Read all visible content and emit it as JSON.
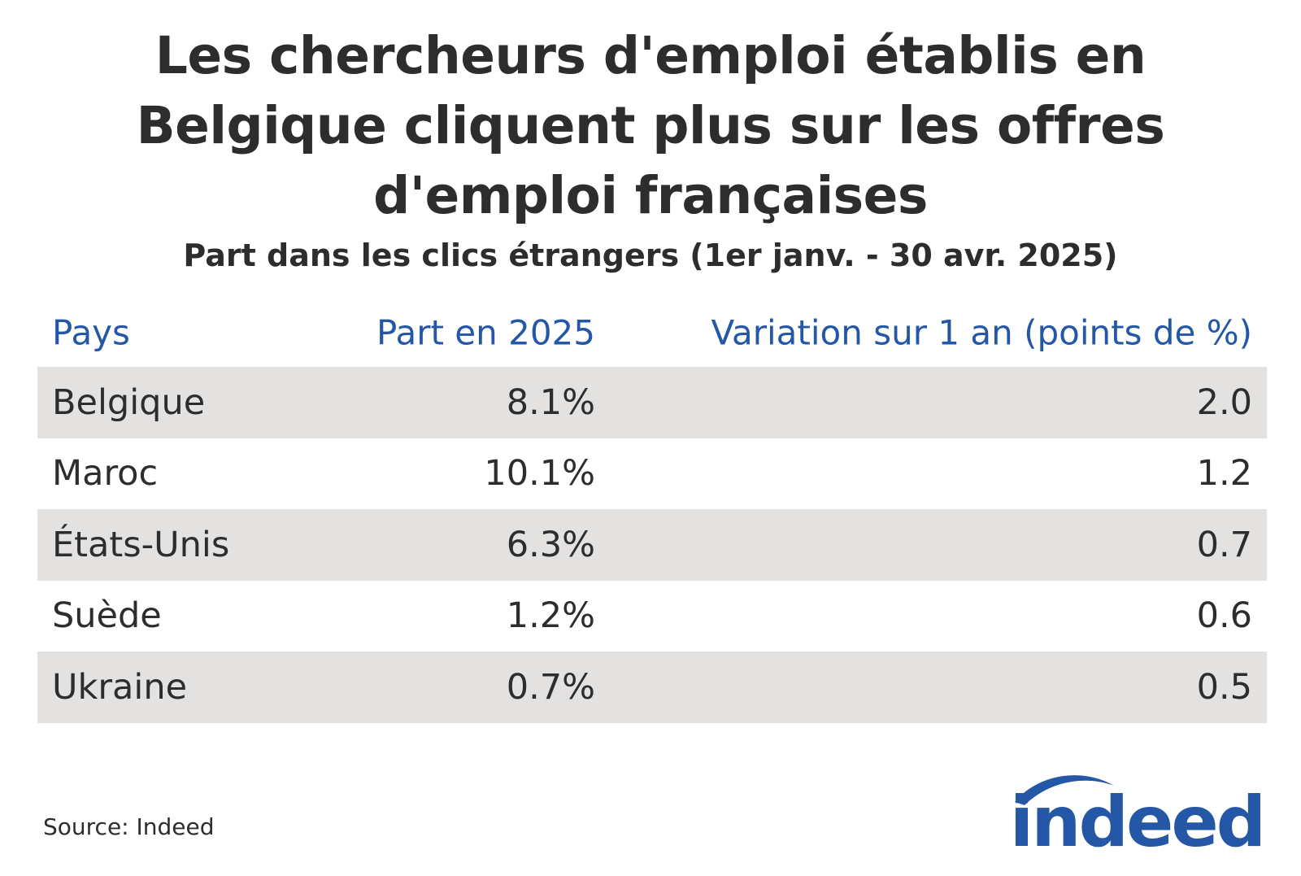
{
  "chart_data": {
    "type": "table",
    "title": "Les chercheurs d'emploi établis en Belgique cliquent plus sur les offres d'emploi françaises",
    "subtitle": "Part dans les clics étrangers (1er janv. - 30 avr. 2025)",
    "columns": [
      "Pays",
      "Part en 2025",
      "Variation sur 1 an (points de %)"
    ],
    "rows": [
      {
        "pays": "Belgique",
        "part": "8.1%",
        "variation": "2.0"
      },
      {
        "pays": "Maroc",
        "part": "10.1%",
        "variation": "1.2"
      },
      {
        "pays": "États-Unis",
        "part": "6.3%",
        "variation": "0.7"
      },
      {
        "pays": "Suède",
        "part": "1.2%",
        "variation": "0.6"
      },
      {
        "pays": "Ukraine",
        "part": "0.7%",
        "variation": "0.5"
      }
    ],
    "values_part": [
      8.1,
      10.1,
      6.3,
      1.2,
      0.7
    ],
    "values_variation": [
      2.0,
      1.2,
      0.7,
      0.6,
      0.5
    ]
  },
  "title_lines": [
    "Les chercheurs d'emploi établis en",
    "Belgique cliquent plus sur les offres",
    "d'emploi françaises"
  ],
  "source": "Source: Indeed",
  "logo": {
    "text": "indeed",
    "color": "#2557a7"
  },
  "colors": {
    "header": "#2557a7",
    "shade": "#e4e2e0",
    "text": "#2d2d2d"
  }
}
